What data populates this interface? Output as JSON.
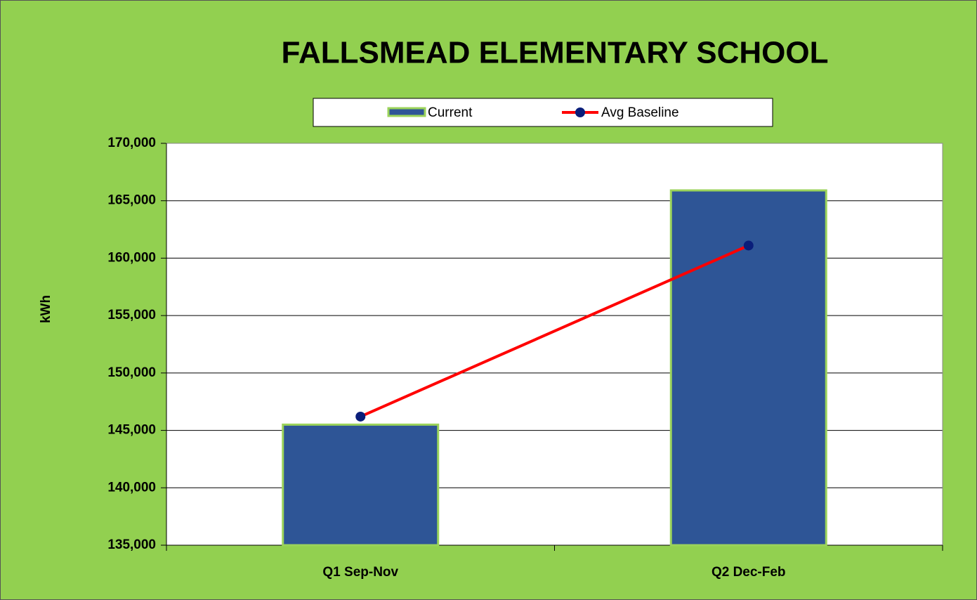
{
  "chart_data": {
    "type": "bar",
    "title": "FALLSMEAD ELEMENTARY SCHOOL",
    "ylabel": "kWh",
    "categories": [
      "Q1 Sep-Nov",
      "Q2 Dec-Feb"
    ],
    "series": [
      {
        "name": "Current",
        "type": "bar",
        "color": "#2e5596",
        "values": [
          145500,
          165900
        ]
      },
      {
        "name": "Avg Baseline",
        "type": "line",
        "color": "#ff0000",
        "marker_color": "#0a1e7a",
        "values": [
          146200,
          161100
        ]
      }
    ],
    "ylim": [
      135000,
      170000
    ],
    "yticks": [
      {
        "value": 135000,
        "label": "135,000"
      },
      {
        "value": 140000,
        "label": "140,000"
      },
      {
        "value": 145000,
        "label": "145,000"
      },
      {
        "value": 150000,
        "label": "150,000"
      },
      {
        "value": 155000,
        "label": "155,000"
      },
      {
        "value": 160000,
        "label": "160,000"
      },
      {
        "value": 165000,
        "label": "165,000"
      },
      {
        "value": 170000,
        "label": "170,000"
      }
    ],
    "grid": true,
    "legend": "top"
  }
}
